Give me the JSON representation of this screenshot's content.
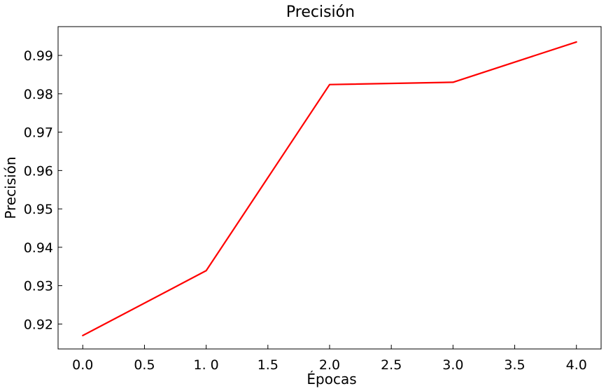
{
  "chart_data": {
    "type": "line",
    "title": "Precisión",
    "xlabel": "Épocas",
    "ylabel": "Precisión",
    "x": [
      0,
      1,
      2,
      3,
      4
    ],
    "xticks": [
      0.0,
      0.5,
      1.0,
      1.5,
      2.0,
      2.5,
      3.0,
      3.5,
      4.0
    ],
    "xtick_labels": [
      "0.0",
      "0.5",
      "1. 0",
      "1.5",
      "2.0",
      "2.5",
      "3.0",
      "3.5",
      "4.0"
    ],
    "yticks": [
      0.92,
      0.93,
      0.94,
      0.95,
      0.96,
      0.97,
      0.98,
      0.99
    ],
    "ytick_labels": [
      "0.92",
      "0.93",
      "0.94",
      "0.95",
      "0.96",
      "0.97",
      "0.98",
      "0.99"
    ],
    "xlim": [
      -0.2,
      4.2
    ],
    "ylim": [
      0.9135,
      0.9975
    ],
    "grid": false,
    "series": [
      {
        "values": [
          0.917,
          0.9339,
          0.9824,
          0.983,
          0.9935
        ],
        "color": "#ff0000"
      }
    ]
  }
}
